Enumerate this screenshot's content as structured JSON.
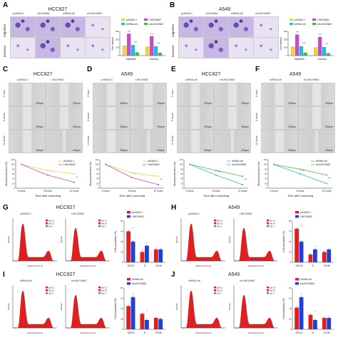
{
  "panels": {
    "A": {
      "label": "A",
      "title": "HCC827",
      "col_headers": [
        "pcDNA3.1",
        "LINC00662",
        "shRNA-ctrl",
        "shLINC00662"
      ],
      "row_labels": [
        "migration",
        "invasion"
      ]
    },
    "B": {
      "label": "B",
      "title": "A549",
      "col_headers": [
        "pcDNA3.1",
        "LINC00662",
        "shRNA-ctrl",
        "shLINC00662"
      ],
      "row_labels": [
        "migration",
        "invasion"
      ]
    },
    "C": {
      "label": "C",
      "title": "HCC827",
      "col_headers": [
        "pcDNA3.1",
        "LINC00662"
      ]
    },
    "D": {
      "label": "D",
      "title": "A549",
      "col_headers": [
        "pcDNA3.1",
        "LINC00662"
      ]
    },
    "E": {
      "label": "E",
      "title": "HCC827",
      "col_headers": [
        "shRNA-ctrl",
        "shLINC00662"
      ]
    },
    "F": {
      "label": "F",
      "title": "A549",
      "col_headers": [
        "shRNA-ctrl",
        "shLINC00662"
      ]
    },
    "G": {
      "label": "G",
      "title": "HCC827",
      "col_headers": [
        "pcDNA3.1",
        "LINC00662"
      ]
    },
    "H": {
      "label": "H",
      "title": "A549",
      "col_headers": [
        "pcDNA3.1",
        "LINC00662"
      ]
    },
    "I": {
      "label": "I",
      "title": "HCC827",
      "col_headers": [
        "shRNA-ctrl",
        "shLINC00662"
      ]
    },
    "J": {
      "label": "J",
      "title": "A549",
      "col_headers": [
        "shRNA-ctrl",
        "shLINC00662"
      ]
    }
  },
  "time_labels": [
    "0 hour",
    "6 hours",
    "12 hours"
  ],
  "scale_label": "200μm",
  "flow_legend": [
    "Dip G1",
    "Dip G2",
    "Dip S"
  ],
  "flow_xlabel": "Channels (FL2-A)",
  "flow_ylabel": "Number",
  "colors": {
    "pcdna": "#f2d43a",
    "linc": "#c04fc7",
    "shctrl": "#2bb7e8",
    "shlinc": "#3ec23e",
    "red": "#e02020",
    "blue": "#1f3fd8",
    "peak": "#e02020"
  },
  "chart_data": [
    {
      "type": "bar",
      "id": "A",
      "categories": [
        "Migration",
        "Invasion"
      ],
      "ylabel": "Cell number",
      "ylim": [
        0,
        300
      ],
      "series": [
        {
          "name": "pcDNA3.1",
          "values": [
            120,
            110
          ]
        },
        {
          "name": "LINC00662",
          "values": [
            270,
            240
          ]
        },
        {
          "name": "shRNA-ctrl",
          "values": [
            130,
            115
          ]
        },
        {
          "name": "shLINC00662",
          "values": [
            40,
            35
          ]
        }
      ],
      "annotations": [
        "***",
        "***",
        "***",
        "***"
      ]
    },
    {
      "type": "bar",
      "id": "B",
      "categories": [
        "Migration",
        "Invasion"
      ],
      "ylabel": "Cell number",
      "ylim": [
        0,
        300
      ],
      "series": [
        {
          "name": "pcDNA3.1",
          "values": [
            110,
            100
          ]
        },
        {
          "name": "LINC00662",
          "values": [
            260,
            230
          ]
        },
        {
          "name": "shRNA-ctrl",
          "values": [
            115,
            105
          ]
        },
        {
          "name": "shLINC00662",
          "values": [
            35,
            30
          ]
        }
      ],
      "annotations": [
        "***",
        "***",
        "***",
        "***"
      ]
    },
    {
      "type": "line",
      "id": "C",
      "x": [
        "0 hours",
        "6 hours",
        "12 hours"
      ],
      "xlabel": "Time after wounding",
      "ylabel": "Wound proportion (%)",
      "ylim": [
        0,
        120
      ],
      "series": [
        {
          "name": "pcDNA3.1",
          "values": [
            100,
            75,
            60
          ]
        },
        {
          "name": "LINC00662",
          "values": [
            100,
            55,
            25
          ]
        }
      ],
      "annotations": [
        "*",
        "**"
      ]
    },
    {
      "type": "line",
      "id": "D",
      "x": [
        "0 hours",
        "6 hours",
        "12 hours"
      ],
      "xlabel": "Time after wounding",
      "ylabel": "Wound proportion (%)",
      "ylim": [
        0,
        120
      ],
      "series": [
        {
          "name": "pcDNA3.1",
          "values": [
            100,
            65,
            50
          ]
        },
        {
          "name": "LINC00662",
          "values": [
            100,
            45,
            15
          ]
        }
      ],
      "annotations": [
        "*",
        "**"
      ]
    },
    {
      "type": "line",
      "id": "E",
      "x": [
        "0 hours",
        "6 hours",
        "12 hours"
      ],
      "xlabel": "Time after wounding",
      "ylabel": "Wound proportion (%)",
      "ylim": [
        0,
        120
      ],
      "series": [
        {
          "name": "shRNA-ctrl",
          "values": [
            100,
            55,
            15
          ]
        },
        {
          "name": "shLINC00662",
          "values": [
            100,
            75,
            50
          ]
        }
      ],
      "annotations": [
        "***",
        "***"
      ]
    },
    {
      "type": "line",
      "id": "F",
      "x": [
        "0 hours",
        "6 hours",
        "12 hours"
      ],
      "xlabel": "Time after wounding",
      "ylabel": "Wound proportion (%)",
      "ylim": [
        0,
        120
      ],
      "series": [
        {
          "name": "shRNA-ctrl",
          "values": [
            100,
            60,
            20
          ]
        },
        {
          "name": "shLINC00662",
          "values": [
            100,
            80,
            55
          ]
        }
      ],
      "annotations": [
        "***",
        "***"
      ]
    },
    {
      "type": "bar",
      "id": "G",
      "categories": [
        "G0/G1",
        "S",
        "G2/M"
      ],
      "ylabel": "Cell population (%)",
      "ylim": [
        0,
        80
      ],
      "series": [
        {
          "name": "pcDNA3.1",
          "values": [
            60,
            20,
            25
          ]
        },
        {
          "name": "LINC00662",
          "values": [
            40,
            32,
            25
          ]
        }
      ],
      "annotations": [
        "*",
        "*"
      ]
    },
    {
      "type": "bar",
      "id": "H",
      "categories": [
        "G0/G1",
        "S",
        "G2/M"
      ],
      "ylabel": "Cell population (%)",
      "ylim": [
        0,
        80
      ],
      "series": [
        {
          "name": "pcDNA3.1",
          "values": [
            65,
            15,
            20
          ]
        },
        {
          "name": "LINC00662",
          "values": [
            40,
            25,
            25
          ]
        }
      ],
      "annotations": [
        "*",
        "*"
      ]
    },
    {
      "type": "bar",
      "id": "I",
      "categories": [
        "G0/G1",
        "S",
        "G2/M"
      ],
      "ylabel": "Cell population (%)",
      "ylim": [
        0,
        80
      ],
      "series": [
        {
          "name": "shRNA-ctrl",
          "values": [
            45,
            30,
            22
          ]
        },
        {
          "name": "shLINC00662",
          "values": [
            62,
            18,
            20
          ]
        }
      ],
      "annotations": [
        "*",
        "*"
      ]
    },
    {
      "type": "bar",
      "id": "J",
      "categories": [
        "G0/G1",
        "S",
        "G2/M"
      ],
      "ylabel": "Cell population (%)",
      "ylim": [
        0,
        80
      ],
      "series": [
        {
          "name": "shRNA-ctrl",
          "values": [
            42,
            28,
            22
          ]
        },
        {
          "name": "shLINC00662",
          "values": [
            62,
            18,
            22
          ]
        }
      ],
      "annotations": [
        "*",
        "*"
      ]
    }
  ]
}
